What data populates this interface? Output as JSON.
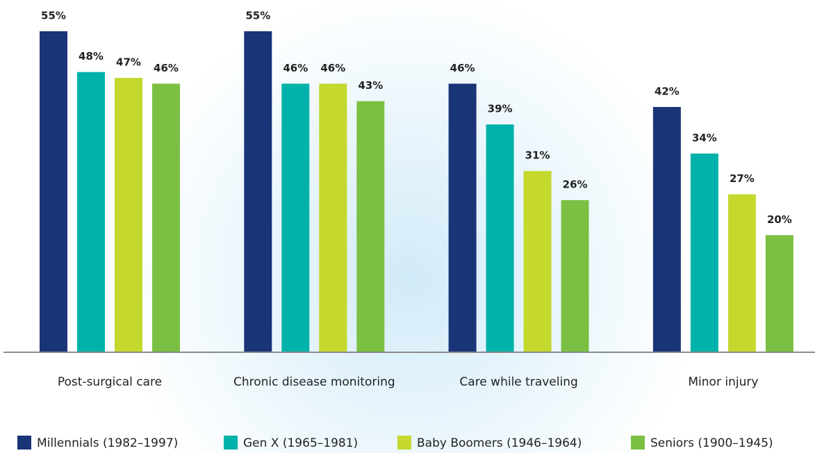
{
  "chart_data": {
    "type": "bar",
    "categories": [
      "Post-surgical care",
      "Chronic disease monitoring",
      "Care while traveling",
      "Minor injury"
    ],
    "series": [
      {
        "name": "Millennials (1982–1997)",
        "color": "#1a3478",
        "values": [
          55,
          55,
          46,
          42
        ],
        "value_labels": [
          "55%",
          "55%",
          "46%",
          "42%"
        ]
      },
      {
        "name": "Gen X (1965–1981)",
        "color": "#00b2a9",
        "values": [
          48,
          46,
          39,
          34
        ],
        "value_labels": [
          "48%",
          "46%",
          "39%",
          "34%"
        ]
      },
      {
        "name": "Baby Boomers (1946–1964)",
        "color": "#c4d82e",
        "values": [
          47,
          46,
          31,
          27
        ],
        "value_labels": [
          "47%",
          "46%",
          "31%",
          "27%"
        ]
      },
      {
        "name": "Seniors (1900–1945)",
        "color": "#7bc043",
        "values": [
          46,
          43,
          26,
          20
        ],
        "value_labels": [
          "46%",
          "43%",
          "26%",
          "20%"
        ]
      }
    ]
  }
}
